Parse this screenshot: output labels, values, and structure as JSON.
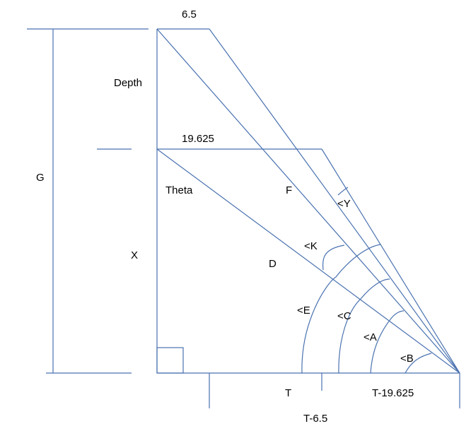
{
  "labels": {
    "top_width": "6.5",
    "depth": "Depth",
    "mid_width": "19.625",
    "g": "G",
    "theta": "Theta",
    "f": "F",
    "angle_y": "<Y",
    "angle_k": "<K",
    "x": "X",
    "d": "D",
    "angle_e": "<E",
    "angle_c": "<C",
    "angle_a": "<A",
    "angle_b": "<B",
    "t": "T",
    "t_minus_19625": "T-19.625",
    "t_minus_65": "T-6.5"
  },
  "colors": {
    "line": "#4a72b0",
    "text": "#000000"
  }
}
